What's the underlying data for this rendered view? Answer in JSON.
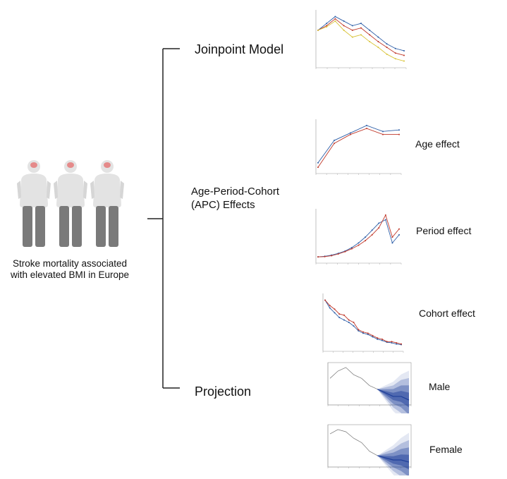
{
  "caption": {
    "line1": "Stroke mortality associated",
    "line2": "with elevated BMI in Europe"
  },
  "branches": {
    "joinpoint": "Joinpoint Model",
    "apc_line1": "Age-Period-Cohort",
    "apc_line2": "(APC) Effects",
    "projection": "Projection"
  },
  "effects": {
    "age": "Age effect",
    "period": "Period effect",
    "cohort": "Cohort effect",
    "male": "Male",
    "female": "Female"
  },
  "colors": {
    "line_red": "#c0392b",
    "line_blue": "#2e5fa8",
    "line_yellow": "#d9c43a",
    "fan_blue": "#1f3f99",
    "figure_body": "#e3e3e3",
    "figure_legs": "#7a7a7a",
    "brain": "#e58a8a"
  },
  "icons": [
    "person-figure-icon",
    "brain-icon"
  ],
  "chart_data": [
    {
      "type": "line",
      "series": [
        {
          "values": [
            52,
            58,
            64,
            60,
            56,
            58,
            52,
            46,
            40,
            36,
            34
          ]
        },
        {
          "values": [
            52,
            56,
            62,
            56,
            52,
            54,
            48,
            42,
            37,
            32,
            30
          ]
        },
        {
          "values": [
            52,
            55,
            60,
            52,
            46,
            48,
            42,
            37,
            31,
            27,
            25
          ]
        }
      ]
    },
    {
      "type": "line",
      "series": [
        {
          "values": [
            1.0,
            2.5,
            3.0,
            3.5,
            3.1,
            3.2
          ]
        },
        {
          "values": [
            0.7,
            2.3,
            2.9,
            3.3,
            2.9,
            2.9
          ]
        }
      ]
    },
    {
      "type": "line",
      "series": [
        {
          "values": [
            0.1,
            0.15,
            0.25,
            0.4,
            0.6,
            0.9,
            1.3,
            1.8,
            2.4,
            3.0,
            3.3,
            1.3,
            2.0
          ]
        },
        {
          "values": [
            0.1,
            0.12,
            0.2,
            0.35,
            0.55,
            0.8,
            1.1,
            1.5,
            2.0,
            2.6,
            3.7,
            1.8,
            2.5
          ]
        }
      ]
    },
    {
      "type": "line",
      "series": [
        {
          "values": [
            8.5,
            7.2,
            6.4,
            5.6,
            5.2,
            4.8,
            4.2,
            3.4,
            3.0,
            2.8,
            2.4,
            2.0,
            1.8,
            1.5,
            1.4,
            1.2,
            1.1
          ]
        },
        {
          "values": [
            8.5,
            7.6,
            7.0,
            6.2,
            6.0,
            5.2,
            4.8,
            3.6,
            3.2,
            3.0,
            2.6,
            2.2,
            2.0,
            1.6,
            1.6,
            1.4,
            1.2
          ]
        }
      ]
    },
    {
      "type": "area",
      "series": [
        {
          "values": [
            40,
            42,
            43,
            41,
            40,
            38,
            37,
            36,
            35,
            35,
            34
          ]
        }
      ]
    },
    {
      "type": "area",
      "series": [
        {
          "values": [
            42,
            44,
            43,
            40,
            38,
            34,
            32,
            31,
            30,
            30,
            29
          ]
        }
      ]
    }
  ]
}
